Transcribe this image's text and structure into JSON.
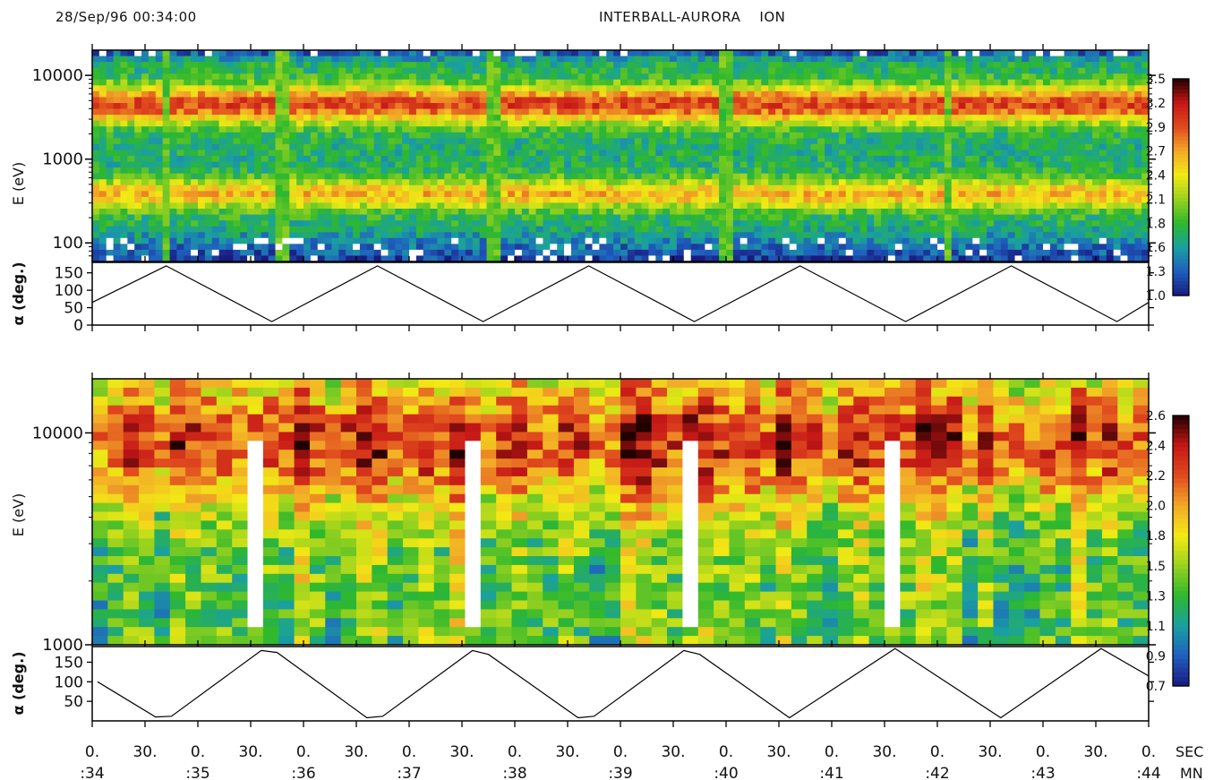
{
  "header": {
    "timestamp": "28/Sep/96 00:34:00",
    "title": "INTERBALL-AURORA    ION"
  },
  "colors": {
    "scale": [
      "#1a1a80",
      "#1f5fbf",
      "#1aa0a0",
      "#2eb82e",
      "#9ad21e",
      "#f2ea14",
      "#f2a828",
      "#e04a1e",
      "#c41616",
      "#200000"
    ],
    "missing": "#ffffff"
  },
  "chart_data": [
    {
      "type": "heatmap",
      "panel": "top-spectrogram",
      "ylabel": "E (eV)",
      "yscale": "log",
      "ylim": [
        60,
        20000
      ],
      "yticks": [
        "10000",
        "1000",
        "100"
      ],
      "colorbar": {
        "min": 1.0,
        "max": 3.5,
        "ticks": [
          "3.5",
          "3.2",
          "2.9",
          "2.7",
          "2.4",
          "2.1",
          "1.8",
          "1.6",
          "1.3",
          "1.0"
        ]
      },
      "gap_times_min": [
        0.7,
        1.8,
        3.8,
        6.0,
        8.1
      ],
      "bands": [
        {
          "center_eV": 4500,
          "width_decades": 0.22,
          "level": 3.0
        },
        {
          "center_eV": 380,
          "width_decades": 0.18,
          "level": 2.6
        }
      ]
    },
    {
      "type": "line",
      "panel": "top-pitch-angle",
      "ylabel": "α (deg.)",
      "ylim": [
        0,
        180
      ],
      "yticks": [
        "150",
        "100",
        "50",
        "0"
      ],
      "x_min": [
        0,
        0.7,
        1.7,
        2.7,
        3.7,
        4.7,
        5.7,
        6.7,
        7.7,
        8.7,
        9.7,
        10.0
      ],
      "y_deg": [
        65,
        170,
        10,
        170,
        10,
        170,
        10,
        170,
        10,
        170,
        10,
        65
      ]
    },
    {
      "type": "heatmap",
      "panel": "bottom-spectrogram",
      "ylabel": "E (eV)",
      "yscale": "log",
      "ylim": [
        1000,
        18000
      ],
      "yticks": [
        "10000",
        "1000"
      ],
      "colorbar": {
        "min": 0.7,
        "max": 2.6,
        "ticks": [
          "2.6",
          "2.4",
          "2.2",
          "2.0",
          "1.8",
          "1.5",
          "1.3",
          "1.1",
          "0.9",
          "0.7"
        ]
      },
      "gap_times_min": [
        1.6,
        3.6,
        5.6,
        7.6
      ],
      "bands": [
        {
          "center_eV": 9000,
          "width_decades": 0.3,
          "level": 2.25
        }
      ]
    },
    {
      "type": "line",
      "panel": "bottom-pitch-angle",
      "ylabel": "α (deg.)",
      "ylim": [
        0,
        190
      ],
      "yticks": [
        "150",
        "100",
        "50"
      ],
      "x_min": [
        0.05,
        0.6,
        0.75,
        1.6,
        1.75,
        2.6,
        2.75,
        3.6,
        3.75,
        4.6,
        4.75,
        5.6,
        5.75,
        6.6,
        7.6,
        8.6,
        9.55,
        10.0
      ],
      "y_deg": [
        100,
        10,
        12,
        180,
        175,
        8,
        12,
        180,
        170,
        8,
        12,
        180,
        170,
        8,
        185,
        8,
        185,
        115
      ]
    }
  ],
  "time_axis": {
    "sec_labels": [
      "0.",
      "30.",
      "0.",
      "30.",
      "0.",
      "30.",
      "0.",
      "30.",
      "0.",
      "30.",
      "0.",
      "30.",
      "0.",
      "30.",
      "0.",
      "30.",
      "0.",
      "30.",
      "0.",
      "30.",
      "0."
    ],
    "min_labels": [
      ":34",
      ":35",
      ":36",
      ":37",
      ":38",
      ":39",
      ":40",
      ":41",
      ":42",
      ":43",
      ":44"
    ],
    "sec_unit": "SEC",
    "min_unit": "MN"
  }
}
